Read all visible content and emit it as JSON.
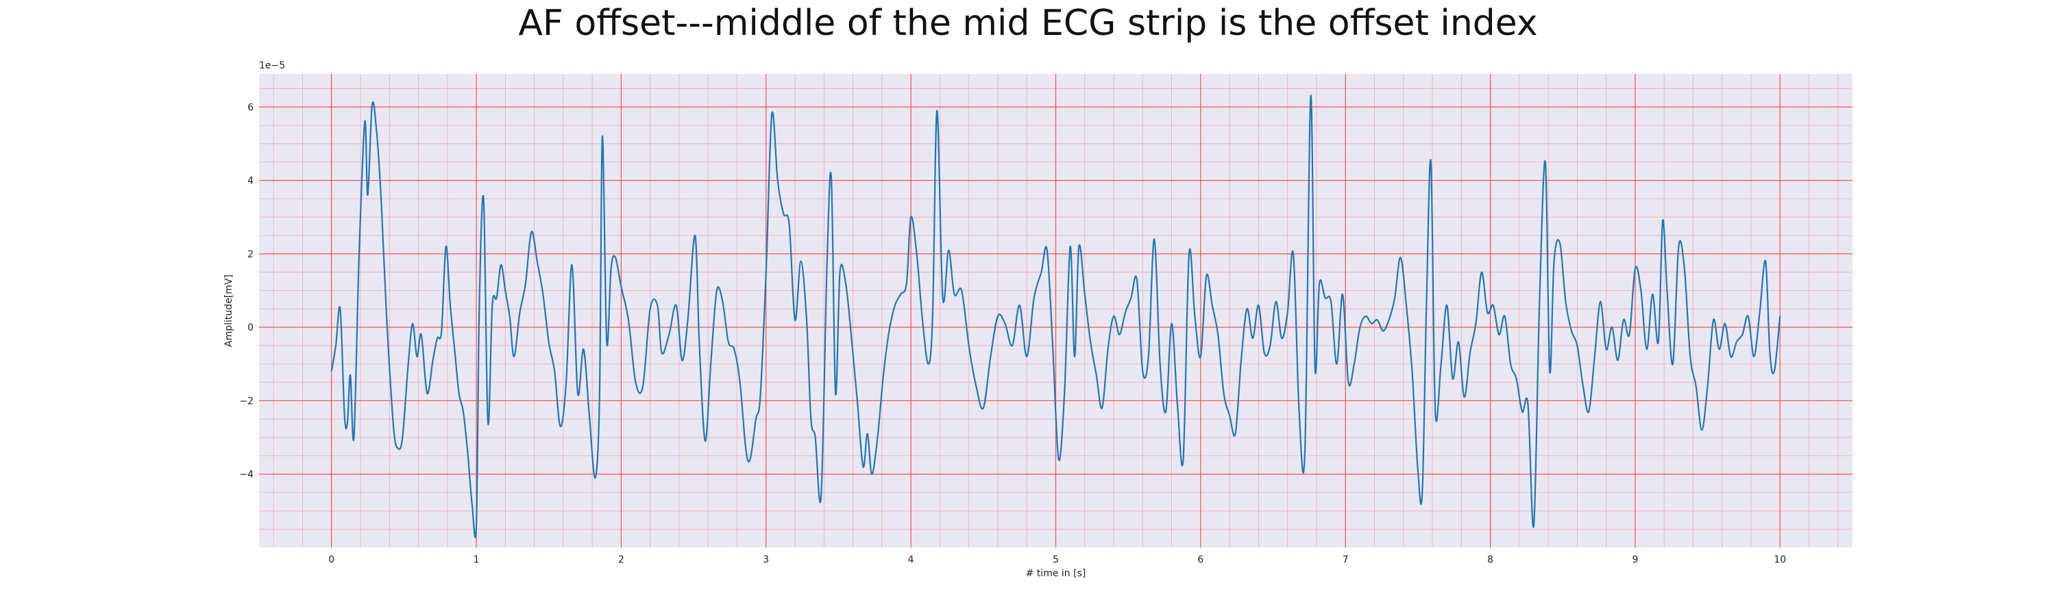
{
  "chart_data": {
    "type": "line",
    "title": "AF offset---middle of the mid ECG strip is the offset index",
    "xlabel": "# time in [s]",
    "ylabel": "Amplitude[mV]",
    "y_scale_label": "1e−5",
    "xlim": [
      -0.5,
      10.5
    ],
    "ylim": [
      -6.0,
      6.9
    ],
    "x_ticks": [
      0,
      1,
      2,
      3,
      4,
      5,
      6,
      7,
      8,
      9,
      10
    ],
    "y_ticks": [
      -4,
      -2,
      0,
      2,
      4,
      6
    ],
    "grid": {
      "major": true,
      "minor": true,
      "major_color": "#ff4d4d",
      "minor_color": "#f4a5b5"
    },
    "plot_background": "#e9e8f2",
    "series": [
      {
        "color": "#1f77b4",
        "points": [
          [
            0.0,
            -1.2
          ],
          [
            0.03,
            -0.5
          ],
          [
            0.06,
            0.5
          ],
          [
            0.09,
            -2.4
          ],
          [
            0.11,
            -2.6
          ],
          [
            0.13,
            -1.3
          ],
          [
            0.155,
            -3.0
          ],
          [
            0.19,
            1.9
          ],
          [
            0.23,
            5.6
          ],
          [
            0.25,
            3.6
          ],
          [
            0.28,
            6.05
          ],
          [
            0.31,
            5.4
          ],
          [
            0.34,
            3.7
          ],
          [
            0.36,
            2.0
          ],
          [
            0.39,
            -0.4
          ],
          [
            0.43,
            -2.8
          ],
          [
            0.46,
            -3.3
          ],
          [
            0.49,
            -3.0
          ],
          [
            0.53,
            -1.0
          ],
          [
            0.56,
            0.1
          ],
          [
            0.59,
            -0.8
          ],
          [
            0.62,
            -0.2
          ],
          [
            0.66,
            -1.8
          ],
          [
            0.7,
            -0.9
          ],
          [
            0.73,
            -0.3
          ],
          [
            0.76,
            -0.1
          ],
          [
            0.79,
            2.2
          ],
          [
            0.82,
            0.6
          ],
          [
            0.85,
            -0.6
          ],
          [
            0.88,
            -1.8
          ],
          [
            0.91,
            -2.3
          ],
          [
            0.94,
            -3.4
          ],
          [
            0.97,
            -4.8
          ],
          [
            1.0,
            -5.4
          ],
          [
            1.02,
            0.5
          ],
          [
            1.05,
            3.5
          ],
          [
            1.08,
            -2.6
          ],
          [
            1.11,
            0.6
          ],
          [
            1.14,
            0.8
          ],
          [
            1.17,
            1.7
          ],
          [
            1.2,
            1.0
          ],
          [
            1.23,
            0.3
          ],
          [
            1.26,
            -0.8
          ],
          [
            1.3,
            0.4
          ],
          [
            1.34,
            1.2
          ],
          [
            1.38,
            2.6
          ],
          [
            1.42,
            1.8
          ],
          [
            1.46,
            0.9
          ],
          [
            1.5,
            -0.4
          ],
          [
            1.54,
            -1.2
          ],
          [
            1.58,
            -2.7
          ],
          [
            1.62,
            -1.5
          ],
          [
            1.66,
            1.7
          ],
          [
            1.7,
            -1.8
          ],
          [
            1.74,
            -0.6
          ],
          [
            1.78,
            -2.4
          ],
          [
            1.82,
            -4.1
          ],
          [
            1.85,
            -2.0
          ],
          [
            1.87,
            5.2
          ],
          [
            1.9,
            -0.4
          ],
          [
            1.93,
            1.6
          ],
          [
            1.96,
            1.9
          ],
          [
            2.0,
            1.1
          ],
          [
            2.05,
            0.2
          ],
          [
            2.1,
            -1.5
          ],
          [
            2.15,
            -1.6
          ],
          [
            2.2,
            0.5
          ],
          [
            2.25,
            0.6
          ],
          [
            2.28,
            -0.7
          ],
          [
            2.33,
            -0.2
          ],
          [
            2.38,
            0.6
          ],
          [
            2.42,
            -0.9
          ],
          [
            2.46,
            0.2
          ],
          [
            2.51,
            2.5
          ],
          [
            2.54,
            -0.5
          ],
          [
            2.58,
            -3.1
          ],
          [
            2.62,
            -0.9
          ],
          [
            2.66,
            1.0
          ],
          [
            2.7,
            0.7
          ],
          [
            2.74,
            -0.4
          ],
          [
            2.78,
            -0.6
          ],
          [
            2.82,
            -1.5
          ],
          [
            2.86,
            -3.3
          ],
          [
            2.89,
            -3.6
          ],
          [
            2.93,
            -2.5
          ],
          [
            2.96,
            -1.9
          ],
          [
            3.0,
            1.5
          ],
          [
            3.04,
            5.8
          ],
          [
            3.08,
            4.0
          ],
          [
            3.12,
            3.1
          ],
          [
            3.16,
            2.8
          ],
          [
            3.2,
            0.2
          ],
          [
            3.24,
            1.8
          ],
          [
            3.28,
            0.2
          ],
          [
            3.31,
            -2.5
          ],
          [
            3.34,
            -3.0
          ],
          [
            3.38,
            -4.6
          ],
          [
            3.42,
            1.6
          ],
          [
            3.45,
            4.1
          ],
          [
            3.48,
            -1.8
          ],
          [
            3.51,
            1.5
          ],
          [
            3.55,
            1.2
          ],
          [
            3.59,
            -0.3
          ],
          [
            3.63,
            -2.0
          ],
          [
            3.67,
            -3.8
          ],
          [
            3.7,
            -2.9
          ],
          [
            3.73,
            -4.0
          ],
          [
            3.77,
            -3.0
          ],
          [
            3.81,
            -1.3
          ],
          [
            3.85,
            -0.1
          ],
          [
            3.89,
            0.6
          ],
          [
            3.93,
            0.9
          ],
          [
            3.97,
            1.2
          ],
          [
            4.0,
            3.0
          ],
          [
            4.04,
            2.0
          ],
          [
            4.08,
            0.2
          ],
          [
            4.12,
            -1.0
          ],
          [
            4.15,
            0.3
          ],
          [
            4.18,
            5.9
          ],
          [
            4.22,
            0.8
          ],
          [
            4.26,
            2.1
          ],
          [
            4.3,
            0.9
          ],
          [
            4.35,
            1.0
          ],
          [
            4.4,
            -0.5
          ],
          [
            4.45,
            -1.6
          ],
          [
            4.5,
            -2.2
          ],
          [
            4.55,
            -0.8
          ],
          [
            4.6,
            0.3
          ],
          [
            4.65,
            0.1
          ],
          [
            4.7,
            -0.5
          ],
          [
            4.75,
            0.6
          ],
          [
            4.8,
            -0.8
          ],
          [
            4.85,
            0.8
          ],
          [
            4.9,
            1.5
          ],
          [
            4.94,
            2.1
          ],
          [
            4.98,
            -0.6
          ],
          [
            5.02,
            -3.6
          ],
          [
            5.06,
            -1.8
          ],
          [
            5.1,
            2.2
          ],
          [
            5.13,
            -0.8
          ],
          [
            5.16,
            2.2
          ],
          [
            5.2,
            0.9
          ],
          [
            5.24,
            -0.4
          ],
          [
            5.28,
            -1.3
          ],
          [
            5.32,
            -2.2
          ],
          [
            5.36,
            -0.6
          ],
          [
            5.4,
            0.3
          ],
          [
            5.44,
            -0.2
          ],
          [
            5.48,
            0.4
          ],
          [
            5.52,
            0.8
          ],
          [
            5.56,
            1.3
          ],
          [
            5.6,
            -1.2
          ],
          [
            5.64,
            -0.8
          ],
          [
            5.68,
            2.4
          ],
          [
            5.72,
            -1.0
          ],
          [
            5.76,
            -2.3
          ],
          [
            5.8,
            0.1
          ],
          [
            5.84,
            -2.1
          ],
          [
            5.88,
            -3.6
          ],
          [
            5.92,
            2.0
          ],
          [
            5.96,
            0.3
          ],
          [
            6.0,
            -0.8
          ],
          [
            6.04,
            1.4
          ],
          [
            6.08,
            0.6
          ],
          [
            6.12,
            -0.2
          ],
          [
            6.16,
            -1.8
          ],
          [
            6.2,
            -2.4
          ],
          [
            6.24,
            -2.9
          ],
          [
            6.28,
            -0.9
          ],
          [
            6.32,
            0.5
          ],
          [
            6.36,
            -0.3
          ],
          [
            6.4,
            0.6
          ],
          [
            6.44,
            -0.7
          ],
          [
            6.48,
            -0.5
          ],
          [
            6.52,
            0.7
          ],
          [
            6.56,
            -0.3
          ],
          [
            6.6,
            0.4
          ],
          [
            6.64,
            2.0
          ],
          [
            6.68,
            -2.3
          ],
          [
            6.72,
            -3.4
          ],
          [
            6.76,
            6.3
          ],
          [
            6.79,
            -1.1
          ],
          [
            6.82,
            1.2
          ],
          [
            6.86,
            0.8
          ],
          [
            6.9,
            0.7
          ],
          [
            6.94,
            -1.0
          ],
          [
            6.98,
            0.9
          ],
          [
            7.02,
            -1.5
          ],
          [
            7.06,
            -1.0
          ],
          [
            7.1,
            0.0
          ],
          [
            7.14,
            0.3
          ],
          [
            7.18,
            0.1
          ],
          [
            7.22,
            0.2
          ],
          [
            7.26,
            -0.1
          ],
          [
            7.3,
            0.2
          ],
          [
            7.34,
            0.8
          ],
          [
            7.38,
            1.9
          ],
          [
            7.42,
            0.6
          ],
          [
            7.46,
            -1.2
          ],
          [
            7.5,
            -3.9
          ],
          [
            7.53,
            -4.5
          ],
          [
            7.56,
            0.8
          ],
          [
            7.59,
            4.5
          ],
          [
            7.62,
            -2.3
          ],
          [
            7.66,
            -1.0
          ],
          [
            7.7,
            0.6
          ],
          [
            7.74,
            -1.4
          ],
          [
            7.78,
            -0.4
          ],
          [
            7.82,
            -1.9
          ],
          [
            7.86,
            -0.7
          ],
          [
            7.9,
            0.1
          ],
          [
            7.94,
            1.5
          ],
          [
            7.98,
            0.4
          ],
          [
            8.02,
            0.6
          ],
          [
            8.06,
            -0.2
          ],
          [
            8.1,
            0.3
          ],
          [
            8.14,
            -1.0
          ],
          [
            8.18,
            -1.4
          ],
          [
            8.22,
            -2.3
          ],
          [
            8.26,
            -2.1
          ],
          [
            8.3,
            -5.4
          ],
          [
            8.34,
            0.8
          ],
          [
            8.38,
            4.5
          ],
          [
            8.41,
            -1.2
          ],
          [
            8.44,
            1.8
          ],
          [
            8.48,
            2.3
          ],
          [
            8.52,
            0.7
          ],
          [
            8.56,
            -0.1
          ],
          [
            8.6,
            -0.5
          ],
          [
            8.64,
            -1.6
          ],
          [
            8.68,
            -2.3
          ],
          [
            8.72,
            -0.8
          ],
          [
            8.76,
            0.7
          ],
          [
            8.8,
            -0.6
          ],
          [
            8.84,
            0.0
          ],
          [
            8.88,
            -0.9
          ],
          [
            8.92,
            0.2
          ],
          [
            8.96,
            -0.2
          ],
          [
            9.0,
            1.6
          ],
          [
            9.04,
            1.0
          ],
          [
            9.08,
            -0.6
          ],
          [
            9.12,
            0.9
          ],
          [
            9.16,
            -0.4
          ],
          [
            9.19,
            2.9
          ],
          [
            9.22,
            1.0
          ],
          [
            9.26,
            -1.0
          ],
          [
            9.3,
            2.2
          ],
          [
            9.34,
            1.6
          ],
          [
            9.38,
            -0.8
          ],
          [
            9.42,
            -1.6
          ],
          [
            9.46,
            -2.8
          ],
          [
            9.5,
            -1.6
          ],
          [
            9.54,
            0.2
          ],
          [
            9.58,
            -0.6
          ],
          [
            9.62,
            0.1
          ],
          [
            9.66,
            -0.8
          ],
          [
            9.7,
            -0.4
          ],
          [
            9.74,
            -0.2
          ],
          [
            9.78,
            0.3
          ],
          [
            9.82,
            -0.8
          ],
          [
            9.86,
            0.4
          ],
          [
            9.9,
            1.8
          ],
          [
            9.93,
            -0.7
          ],
          [
            9.96,
            -1.2
          ],
          [
            10.0,
            0.3
          ]
        ]
      }
    ]
  }
}
